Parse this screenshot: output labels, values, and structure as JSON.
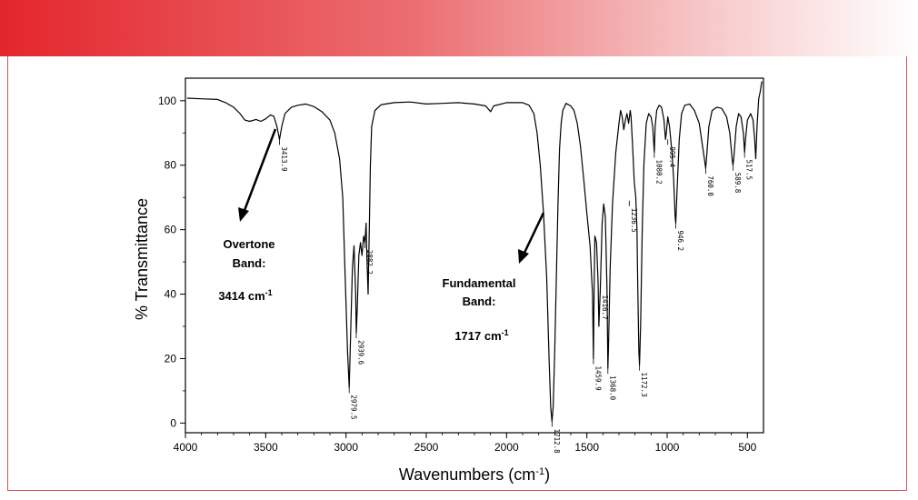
{
  "chart_data": {
    "type": "line",
    "title": "",
    "xlabel": "Wavenumbers (cm",
    "xlabel_sup": "-1",
    "xlabel_close": ")",
    "ylabel": "% Transmittance",
    "xlim": [
      4000,
      400
    ],
    "ylim": [
      -3,
      107
    ],
    "x_ticks": [
      4000,
      3500,
      3000,
      2500,
      2000,
      1500,
      1000,
      500
    ],
    "y_ticks": [
      0,
      20,
      40,
      60,
      80,
      100
    ],
    "grid": false,
    "series": [
      {
        "color": "#000000",
        "points": [
          [
            3990,
            100.8
          ],
          [
            3900,
            100.6
          ],
          [
            3800,
            100.4
          ],
          [
            3750,
            99.4
          ],
          [
            3700,
            98.0
          ],
          [
            3660,
            96.0
          ],
          [
            3630,
            94.0
          ],
          [
            3600,
            93.6
          ],
          [
            3560,
            94.2
          ],
          [
            3530,
            93.6
          ],
          [
            3500,
            94.4
          ],
          [
            3470,
            95.6
          ],
          [
            3450,
            95.2
          ],
          [
            3430,
            92.0
          ],
          [
            3414,
            88.0
          ],
          [
            3400,
            92.0
          ],
          [
            3380,
            96.0
          ],
          [
            3340,
            98.0
          ],
          [
            3300,
            98.6
          ],
          [
            3250,
            99.0
          ],
          [
            3200,
            98.2
          ],
          [
            3150,
            96.6
          ],
          [
            3100,
            94.0
          ],
          [
            3070,
            90.0
          ],
          [
            3040,
            82.0
          ],
          [
            3020,
            70.0
          ],
          [
            3005,
            45.0
          ],
          [
            2990,
            22.0
          ],
          [
            2980,
            11.0
          ],
          [
            2970,
            30.0
          ],
          [
            2960,
            48.0
          ],
          [
            2950,
            55.0
          ],
          [
            2940,
            40.0
          ],
          [
            2936,
            28.0
          ],
          [
            2930,
            35.0
          ],
          [
            2920,
            52.0
          ],
          [
            2910,
            56.0
          ],
          [
            2900,
            52.0
          ],
          [
            2890,
            58.0
          ],
          [
            2882,
            56.0
          ],
          [
            2875,
            62.0
          ],
          [
            2870,
            52.0
          ],
          [
            2862,
            40.0
          ],
          [
            2855,
            60.0
          ],
          [
            2848,
            80.0
          ],
          [
            2840,
            92.0
          ],
          [
            2820,
            97.0
          ],
          [
            2780,
            98.8
          ],
          [
            2700,
            99.4
          ],
          [
            2600,
            99.6
          ],
          [
            2500,
            99.0
          ],
          [
            2400,
            99.2
          ],
          [
            2300,
            99.4
          ],
          [
            2200,
            99.0
          ],
          [
            2130,
            98.4
          ],
          [
            2100,
            96.6
          ],
          [
            2080,
            98.4
          ],
          [
            2000,
            99.4
          ],
          [
            1900,
            99.4
          ],
          [
            1860,
            98.6
          ],
          [
            1830,
            96.0
          ],
          [
            1810,
            90.0
          ],
          [
            1790,
            80.0
          ],
          [
            1770,
            65.0
          ],
          [
            1750,
            45.0
          ],
          [
            1735,
            20.0
          ],
          [
            1725,
            5.0
          ],
          [
            1717,
            0.5
          ],
          [
            1710,
            5.0
          ],
          [
            1700,
            22.0
          ],
          [
            1690,
            45.0
          ],
          [
            1680,
            68.0
          ],
          [
            1670,
            85.0
          ],
          [
            1660,
            93.0
          ],
          [
            1650,
            97.0
          ],
          [
            1630,
            99.2
          ],
          [
            1600,
            98.4
          ],
          [
            1580,
            97.0
          ],
          [
            1560,
            93.0
          ],
          [
            1540,
            86.0
          ],
          [
            1520,
            76.0
          ],
          [
            1500,
            65.0
          ],
          [
            1480,
            55.0
          ],
          [
            1465,
            40.0
          ],
          [
            1459,
            20.0
          ],
          [
            1455,
            40.0
          ],
          [
            1450,
            58.0
          ],
          [
            1440,
            56.0
          ],
          [
            1430,
            44.0
          ],
          [
            1425,
            30.0
          ],
          [
            1416,
            42.0
          ],
          [
            1405,
            62.0
          ],
          [
            1395,
            68.0
          ],
          [
            1385,
            64.0
          ],
          [
            1375,
            42.0
          ],
          [
            1369,
            17.0
          ],
          [
            1365,
            24.0
          ],
          [
            1355,
            48.0
          ],
          [
            1340,
            68.0
          ],
          [
            1320,
            84.0
          ],
          [
            1300,
            93.0
          ],
          [
            1290,
            97.0
          ],
          [
            1280,
            95.0
          ],
          [
            1270,
            91.0
          ],
          [
            1260,
            94.0
          ],
          [
            1250,
            96.0
          ],
          [
            1240,
            93.0
          ],
          [
            1230,
            97.0
          ],
          [
            1225,
            95.0
          ],
          [
            1215,
            86.0
          ],
          [
            1205,
            75.0
          ],
          [
            1195,
            70.0
          ],
          [
            1188,
            60.0
          ],
          [
            1182,
            40.0
          ],
          [
            1176,
            22.0
          ],
          [
            1172,
            18.0
          ],
          [
            1165,
            30.0
          ],
          [
            1155,
            60.0
          ],
          [
            1145,
            80.0
          ],
          [
            1130,
            93.0
          ],
          [
            1115,
            96.0
          ],
          [
            1100,
            95.0
          ],
          [
            1090,
            92.0
          ],
          [
            1080,
            84.0
          ],
          [
            1075,
            92.0
          ],
          [
            1065,
            97.0
          ],
          [
            1050,
            98.6
          ],
          [
            1035,
            98.0
          ],
          [
            1020,
            94.0
          ],
          [
            1010,
            88.0
          ],
          [
            1005,
            90.0
          ],
          [
            996,
            95.0
          ],
          [
            985,
            92.0
          ],
          [
            970,
            84.0
          ],
          [
            960,
            76.0
          ],
          [
            950,
            64.0
          ],
          [
            946,
            62.0
          ],
          [
            940,
            70.0
          ],
          [
            925,
            88.0
          ],
          [
            910,
            96.0
          ],
          [
            890,
            98.6
          ],
          [
            860,
            99.0
          ],
          [
            830,
            97.0
          ],
          [
            800,
            93.0
          ],
          [
            780,
            86.0
          ],
          [
            765,
            81.0
          ],
          [
            760,
            79.0
          ],
          [
            755,
            82.0
          ],
          [
            740,
            92.0
          ],
          [
            720,
            97.0
          ],
          [
            690,
            98.0
          ],
          [
            660,
            97.6
          ],
          [
            630,
            95.0
          ],
          [
            610,
            90.0
          ],
          [
            595,
            82.0
          ],
          [
            590,
            80.0
          ],
          [
            585,
            82.0
          ],
          [
            570,
            92.0
          ],
          [
            555,
            96.0
          ],
          [
            540,
            95.0
          ],
          [
            525,
            90.0
          ],
          [
            518,
            84.0
          ],
          [
            512,
            88.0
          ],
          [
            500,
            94.0
          ],
          [
            480,
            96.0
          ],
          [
            465,
            94.0
          ],
          [
            455,
            88.0
          ],
          [
            448,
            82.0
          ],
          [
            440,
            92.0
          ],
          [
            430,
            100.5
          ],
          [
            420,
            103.0
          ],
          [
            410,
            106.0
          ]
        ]
      }
    ],
    "peak_labels": [
      {
        "x": 3414,
        "y": 88.0,
        "text": "3413.9"
      },
      {
        "x": 2980,
        "y": 11.0,
        "text": "2979.5"
      },
      {
        "x": 2936,
        "y": 28.0,
        "text": "2939.6"
      },
      {
        "x": 2882,
        "y": 56.0,
        "text": "2882.2"
      },
      {
        "x": 1717,
        "y": 0.5,
        "text": "1712.8"
      },
      {
        "x": 1459,
        "y": 20.0,
        "text": "1459.9"
      },
      {
        "x": 1416,
        "y": 42.0,
        "text": "1416.7"
      },
      {
        "x": 1369,
        "y": 17.0,
        "text": "1368.0"
      },
      {
        "x": 1236,
        "y": 69.0,
        "text": "1236.5"
      },
      {
        "x": 1172,
        "y": 18.0,
        "text": "1172.3"
      },
      {
        "x": 1080,
        "y": 84.0,
        "text": "1080.2"
      },
      {
        "x": 996,
        "y": 88.0,
        "text": "995.4"
      },
      {
        "x": 946,
        "y": 62.0,
        "text": "946.2"
      },
      {
        "x": 760,
        "y": 79.0,
        "text": "760.0"
      },
      {
        "x": 590,
        "y": 80.0,
        "text": "589.8"
      },
      {
        "x": 518,
        "y": 84.0,
        "text": "517.5"
      }
    ],
    "annotations": [
      {
        "id": "overtone",
        "lines": [
          "Overtone",
          "Band:"
        ],
        "value": "3414 cm",
        "sup": "-1"
      },
      {
        "id": "fundamental",
        "lines": [
          "Fundamental",
          "Band:"
        ],
        "value": "1717 cm",
        "sup": "-1"
      }
    ]
  }
}
